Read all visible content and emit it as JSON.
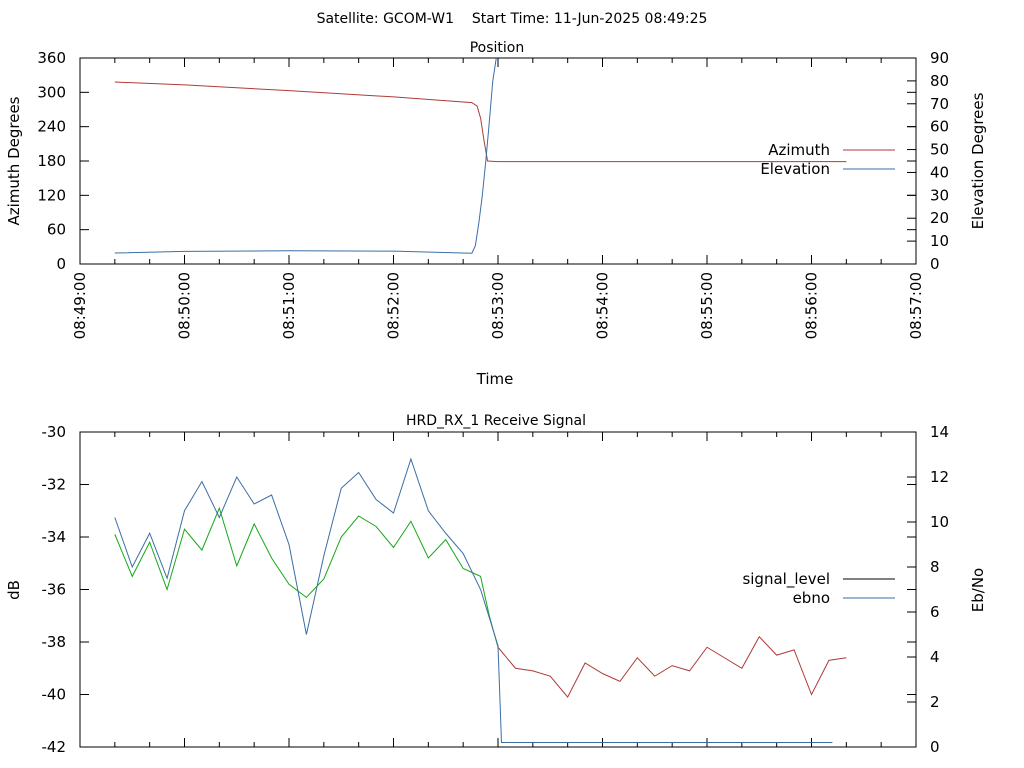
{
  "header": {
    "text": "Satellite: GCOM-W1    Start Time: 11-Jun-2025 08:49:25"
  },
  "chart_data": [
    {
      "type": "line",
      "title": "Position",
      "xlabel": "Time",
      "ylabel": "Azimuth Degrees",
      "y2label": "Elevation Degrees",
      "xlim": [
        "08:49:00",
        "08:57:00"
      ],
      "ylim": [
        0,
        360
      ],
      "y2lim": [
        0,
        90
      ],
      "xticks": [
        "08:49:00",
        "08:50:00",
        "08:51:00",
        "08:52:00",
        "08:53:00",
        "08:54:00",
        "08:55:00",
        "08:56:00",
        "08:57:00"
      ],
      "yticks": [
        0,
        60,
        120,
        180,
        240,
        300,
        360
      ],
      "y2ticks": [
        0,
        10,
        20,
        30,
        40,
        50,
        60,
        70,
        80,
        90
      ],
      "grid": false,
      "legend": "right",
      "series": [
        {
          "name": "Azimuth",
          "axis": "left",
          "color": "#b03a3a",
          "x": [
            "08:49:20",
            "08:50:00",
            "08:51:00",
            "08:52:00",
            "08:52:45",
            "08:52:48",
            "08:52:50",
            "08:52:52",
            "08:52:54",
            "08:53:00",
            "08:56:20"
          ],
          "values": [
            318,
            313,
            303,
            292,
            282,
            276,
            255,
            215,
            180,
            179,
            179
          ]
        },
        {
          "name": "Elevation",
          "axis": "right",
          "color": "#3a6ea5",
          "x": [
            "08:49:20",
            "08:50:00",
            "08:51:00",
            "08:52:00",
            "08:52:45",
            "08:52:47",
            "08:52:49",
            "08:52:51",
            "08:52:53",
            "08:52:55",
            "08:52:57",
            "08:52:59"
          ],
          "values": [
            4.8,
            5.5,
            5.8,
            5.6,
            4.7,
            8,
            18,
            30,
            45,
            62,
            80,
            90
          ]
        }
      ]
    },
    {
      "type": "line",
      "title": "HRD_RX_1 Receive Signal",
      "xlabel": "",
      "ylabel": "dB",
      "y2label": "Eb/No",
      "ylim": [
        -42,
        -30
      ],
      "y2lim": [
        0,
        14
      ],
      "yticks": [
        -42,
        -40,
        -38,
        -36,
        -34,
        -32,
        -30
      ],
      "y2ticks": [
        0,
        2,
        4,
        6,
        8,
        10,
        12,
        14
      ],
      "xlim": [
        "08:49:00",
        "08:57:00"
      ],
      "grid": false,
      "legend": "right",
      "series": [
        {
          "name": "signal_level",
          "axis": "left",
          "color_legend": "#000000",
          "color_good": "#17a817",
          "color_bad": "#b03a3a",
          "x": [
            "08:49:20",
            "08:49:30",
            "08:49:40",
            "08:49:50",
            "08:50:00",
            "08:50:10",
            "08:50:20",
            "08:50:30",
            "08:50:40",
            "08:50:50",
            "08:51:00",
            "08:51:10",
            "08:51:20",
            "08:51:30",
            "08:51:40",
            "08:51:50",
            "08:52:00",
            "08:52:10",
            "08:52:20",
            "08:52:30",
            "08:52:40",
            "08:52:50",
            "08:52:55",
            "08:53:00",
            "08:53:10",
            "08:53:20",
            "08:53:30",
            "08:53:40",
            "08:53:50",
            "08:54:00",
            "08:54:10",
            "08:54:20",
            "08:54:30",
            "08:54:40",
            "08:54:50",
            "08:55:00",
            "08:55:10",
            "08:55:20",
            "08:55:30",
            "08:55:40",
            "08:55:50",
            "08:56:00",
            "08:56:10",
            "08:56:20"
          ],
          "values": [
            -33.9,
            -35.5,
            -34.2,
            -36.0,
            -33.7,
            -34.5,
            -32.9,
            -35.1,
            -33.5,
            -34.8,
            -35.8,
            -36.3,
            -35.6,
            -34.0,
            -33.2,
            -33.6,
            -34.4,
            -33.4,
            -34.8,
            -34.1,
            -35.2,
            -35.5,
            -37.0,
            -38.2,
            -39.0,
            -39.1,
            -39.3,
            -40.1,
            -38.8,
            -39.2,
            -39.5,
            -38.6,
            -39.3,
            -38.9,
            -39.1,
            -38.2,
            -38.6,
            -39.0,
            -37.8,
            -38.5,
            -38.3,
            -40.0,
            -38.7,
            -38.6
          ],
          "quality_threshold_time": "08:53:00"
        },
        {
          "name": "ebno",
          "axis": "right",
          "color": "#3a6ea5",
          "x": [
            "08:49:20",
            "08:49:30",
            "08:49:40",
            "08:49:50",
            "08:50:00",
            "08:50:10",
            "08:50:20",
            "08:50:30",
            "08:50:40",
            "08:50:50",
            "08:51:00",
            "08:51:10",
            "08:51:20",
            "08:51:30",
            "08:51:40",
            "08:51:50",
            "08:52:00",
            "08:52:10",
            "08:52:20",
            "08:52:30",
            "08:52:40",
            "08:52:50",
            "08:53:00",
            "08:53:02",
            "08:56:10",
            "08:56:12"
          ],
          "values": [
            10.2,
            8.0,
            9.5,
            7.5,
            10.5,
            11.8,
            10.2,
            12.0,
            10.8,
            11.2,
            9.0,
            5.0,
            8.5,
            11.5,
            12.2,
            11.0,
            10.4,
            12.8,
            10.5,
            9.5,
            8.6,
            7.0,
            4.5,
            0.2,
            0.2,
            0.2
          ]
        }
      ]
    }
  ]
}
